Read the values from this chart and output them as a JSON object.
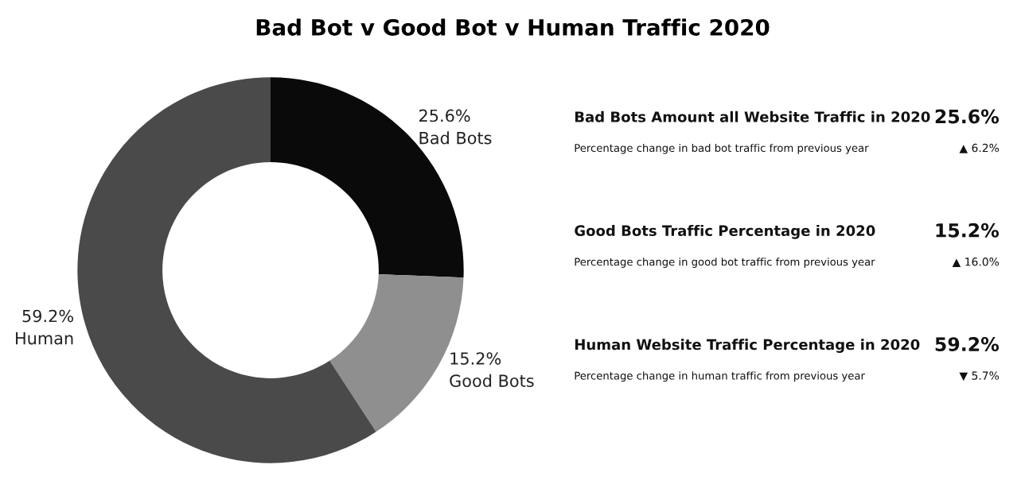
{
  "chart_data": [
    {
      "type": "donut",
      "title": "Bad Bot v Good Bot v Human Traffic 2020",
      "categories": [
        "Bad Bots",
        "Good Bots",
        "Human"
      ],
      "values": [
        25.6,
        15.2,
        59.2
      ],
      "colors": [
        "#0a0a0a",
        "#8f8f8f",
        "#4a4a4a"
      ],
      "value_labels": [
        "25.6%",
        "15.2%",
        "59.2%"
      ]
    },
    {
      "type": "other",
      "annotations": [
        "Bad Bots Amount all Website Traffic in 2020",
        "25.6%",
        "Percentage change in bad bot traffic from previous year",
        "▲ 6.2%",
        "Good Bots Traffic Percentage in 2020",
        "15.2%",
        "Percentage change in good bot traffic from previous year",
        "▲ 16.0%",
        "Human Website Traffic Percentage in 2020",
        "59.2%",
        "Percentage change in human traffic from previous year",
        "▼ 5.7%"
      ]
    }
  ]
}
